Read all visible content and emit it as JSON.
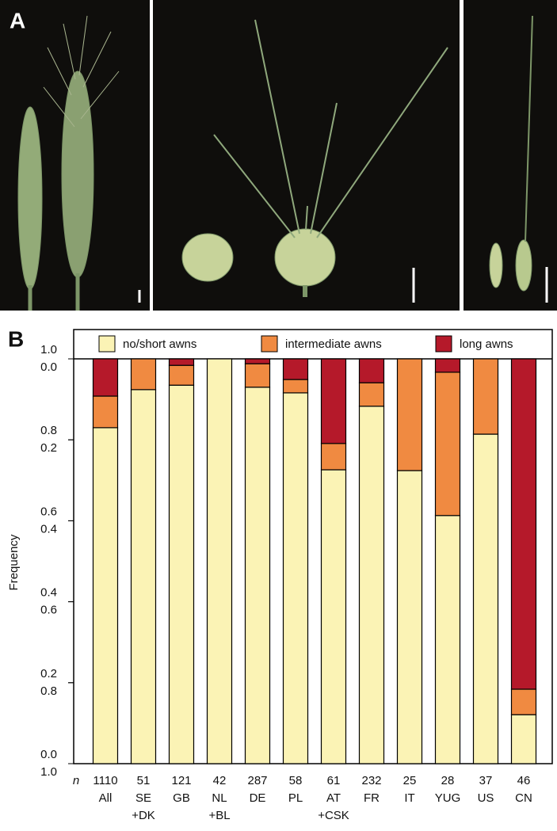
{
  "panel_a": {
    "label": "A"
  },
  "chart_data": {
    "type": "stacked_bar",
    "panel_label": "B",
    "ylabel": "Frequency",
    "n_label": "n",
    "categories": [
      "All",
      "SE\n+DK",
      "GB",
      "NL\n+BL",
      "DE",
      "PL",
      "AT\n+CSK",
      "FR",
      "IT",
      "YUG",
      "US",
      "CN"
    ],
    "n": [
      1110,
      51,
      121,
      42,
      287,
      58,
      61,
      232,
      25,
      28,
      37,
      46
    ],
    "series": [
      {
        "name": "no/short awns",
        "color": "#fbf3b5",
        "values": [
          0.83,
          0.924,
          0.935,
          1.0,
          0.93,
          0.916,
          0.726,
          0.883,
          0.724,
          0.613,
          0.814,
          0.121
        ]
      },
      {
        "name": "intermediate awns",
        "color": "#f08a41",
        "values": [
          0.078,
          0.076,
          0.049,
          0,
          0.058,
          0.033,
          0.065,
          0.058,
          0.276,
          0.354,
          0.186,
          0.063
        ]
      },
      {
        "name": "long awns",
        "color": "#b5192a",
        "values": [
          0.092,
          0,
          0.016,
          0,
          0.012,
          0.051,
          0.209,
          0.059,
          0,
          0.033,
          0,
          0.816
        ]
      }
    ],
    "ylim": [
      0,
      1
    ],
    "yticks": [
      {
        "value": 0,
        "label": "0.0"
      },
      {
        "value": 0.2,
        "label": "0.2"
      },
      {
        "value": 0.4,
        "label": "0.4"
      },
      {
        "value": 0.6,
        "label": "0.6"
      },
      {
        "value": 0.8,
        "label": "0.8"
      },
      {
        "value": 1,
        "label": "1.0"
      }
    ],
    "y2lim": [
      1,
      0
    ],
    "y2ticks": [
      {
        "value": 0,
        "label": "0.0"
      },
      {
        "value": 0.2,
        "label": "0.2"
      },
      {
        "value": 0.4,
        "label": "0.4"
      },
      {
        "value": 0.6,
        "label": "0.6"
      },
      {
        "value": 0.8,
        "label": "0.8"
      },
      {
        "value": 1,
        "label": "1.0"
      }
    ],
    "legend": "top"
  }
}
